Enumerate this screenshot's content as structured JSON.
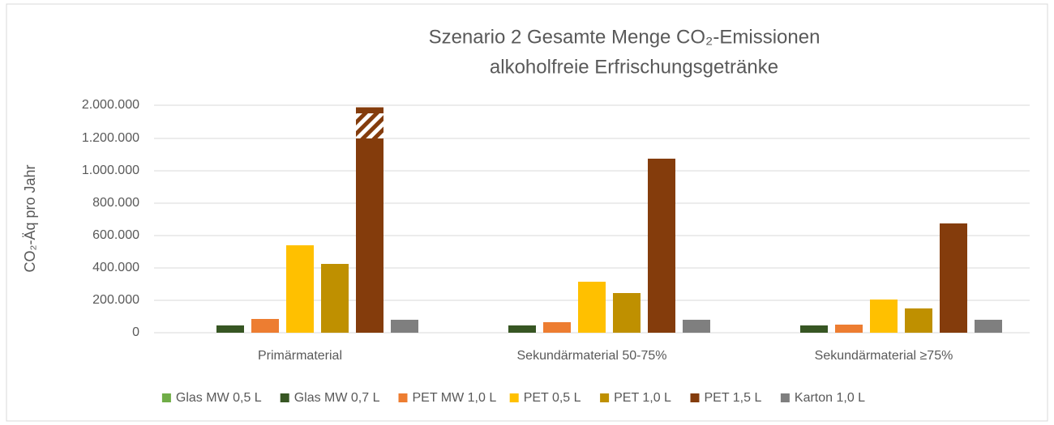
{
  "chart_data": {
    "type": "bar",
    "title": [
      "Szenario 2 Gesamte Menge CO₂-Emissionen",
      "alkoholfreie Erfrischungsgetränke"
    ],
    "y_label": "CO₂-Äq pro Jahr",
    "categories": [
      "Primärmaterial",
      "Sekundärmaterial 50-75%",
      "Sekundärmaterial ≥75%"
    ],
    "series": [
      {
        "name": "Glas MW 0,5 L",
        "color": "#70ad47",
        "values": [
          0,
          0,
          0
        ]
      },
      {
        "name": "Glas MW 0,7 L",
        "color": "#375623",
        "values": [
          45000,
          45000,
          45000
        ]
      },
      {
        "name": "PET MW 1,0 L",
        "color": "#ed7d31",
        "values": [
          85000,
          65000,
          50000
        ]
      },
      {
        "name": "PET 0,5 L",
        "color": "#ffc000",
        "values": [
          540000,
          315000,
          205000
        ]
      },
      {
        "name": "PET 1,0 L",
        "color": "#bf9000",
        "values": [
          425000,
          245000,
          150000
        ]
      },
      {
        "name": "PET 1,5 L",
        "color": "#843c0c",
        "values": [
          1950000,
          1075000,
          675000
        ]
      },
      {
        "name": "Karton 1,0 L",
        "color": "#7f7f7f",
        "values": [
          80000,
          80000,
          80000
        ]
      }
    ],
    "ylim": [
      0,
      2000000
    ],
    "axis_break": 1200000,
    "yticks": [
      0,
      {
        "value": 200000,
        "label": "200.000"
      },
      {
        "value": 400000,
        "label": "400.000"
      },
      {
        "value": 600000,
        "label": "600.000"
      },
      {
        "value": 800000,
        "label": "800.000"
      },
      {
        "value": 1000000,
        "label": "1.000.000"
      },
      {
        "value": 1200000,
        "label": "1.200.000"
      },
      {
        "value": 2000000,
        "label": "2.000.000"
      }
    ],
    "grid": true,
    "legend": "bottom"
  }
}
